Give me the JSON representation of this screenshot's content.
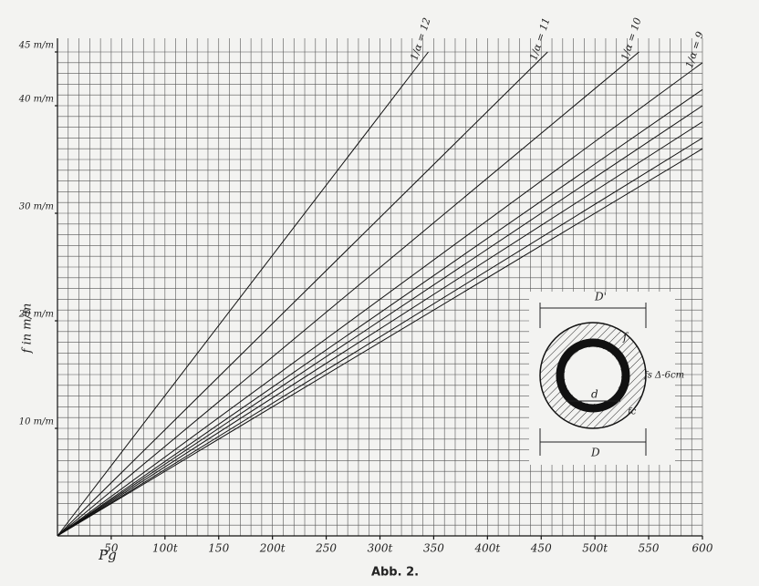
{
  "chart_data": {
    "type": "line",
    "xlabel": "Pg",
    "ylabel": "f in m/m",
    "xlim": [
      0,
      600
    ],
    "ylim": [
      0,
      45
    ],
    "xticks": [
      50,
      {
        "value": 100,
        "label": "100t"
      },
      150,
      {
        "value": 200,
        "label": "200t"
      },
      250,
      {
        "value": 300,
        "label": "300t"
      },
      350,
      {
        "value": 400,
        "label": "400t"
      },
      450,
      {
        "value": 500,
        "label": "500t"
      },
      550,
      600
    ],
    "yticks": [
      {
        "value": 10,
        "label": "10 m/m"
      },
      {
        "value": 20,
        "label": "20 m/m"
      },
      {
        "value": 30,
        "label": "30 m/m"
      },
      {
        "value": 40,
        "label": "40 m/m"
      },
      {
        "value": 45,
        "label": "45 m/m"
      }
    ],
    "xgrid": [
      10,
      20,
      30,
      40,
      50,
      60,
      70,
      80,
      90,
      100,
      110,
      120,
      130,
      140,
      150,
      160,
      170,
      180,
      190,
      200,
      210,
      220,
      230,
      240,
      250,
      260,
      270,
      280,
      290,
      300,
      310,
      320,
      330,
      340,
      350,
      360,
      370,
      380,
      390,
      400,
      410,
      420,
      430,
      440,
      450,
      460,
      470,
      480,
      490,
      500,
      510,
      520,
      530,
      540,
      550,
      560,
      570,
      580,
      590,
      600
    ],
    "ygrid": [
      1,
      2,
      3,
      4,
      5,
      6,
      7,
      8,
      9,
      10,
      11,
      12,
      13,
      14,
      15,
      16,
      17,
      18,
      19,
      20,
      21,
      22,
      23,
      24,
      25,
      26,
      27,
      28,
      29,
      30,
      31,
      32,
      33,
      34,
      35,
      36,
      37,
      38,
      39,
      40,
      41,
      42,
      43,
      44,
      45
    ],
    "grid": true,
    "series": [
      {
        "name": "1/α = 12",
        "color": "#111111",
        "x": [
          0,
          345
        ],
        "values": [
          0,
          45
        ]
      },
      {
        "name": "1/α = 11",
        "color": "#111111",
        "x": [
          0,
          456
        ],
        "values": [
          0,
          45
        ]
      },
      {
        "name": "1/α = 10",
        "color": "#111111",
        "x": [
          0,
          541
        ],
        "values": [
          0,
          45
        ]
      },
      {
        "name": "1/α = 9",
        "color": "#111111",
        "x": [
          0,
          600
        ],
        "values": [
          0,
          44
        ]
      },
      {
        "color": "#111111",
        "x": [
          0,
          600
        ],
        "values": [
          0,
          41.5
        ]
      },
      {
        "color": "#111111",
        "x": [
          0,
          600
        ],
        "values": [
          0,
          40
        ]
      },
      {
        "color": "#111111",
        "x": [
          0,
          600
        ],
        "values": [
          0,
          38.5
        ]
      },
      {
        "color": "#111111",
        "x": [
          0,
          600
        ],
        "values": [
          0,
          37
        ]
      },
      {
        "color": "#111111",
        "x": [
          0,
          600
        ],
        "values": [
          0,
          36
        ]
      }
    ],
    "inset_labels": [
      "D'",
      "f",
      "fs Δ-6cm",
      "d",
      "fc",
      "D"
    ]
  },
  "caption": "Abb. 2."
}
